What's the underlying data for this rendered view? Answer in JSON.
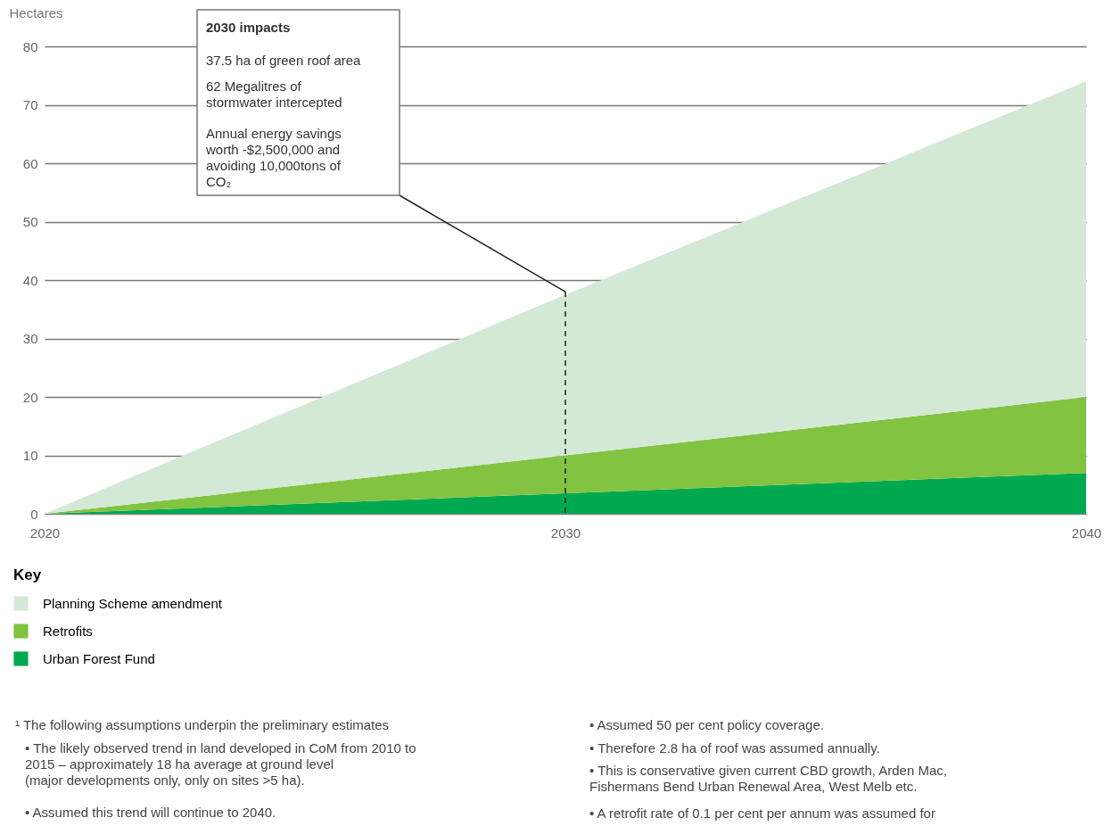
{
  "chart_data": {
    "type": "area",
    "stacked": true,
    "ylabel": "Hectares",
    "legend_title": "Key",
    "legend": "bottom left",
    "x": [
      2020,
      2030,
      2040
    ],
    "xlim": [
      2020,
      2040
    ],
    "xticks": [
      2020,
      2030,
      2040
    ],
    "ref_lines": [
      {
        "axis": "x",
        "value": 2030,
        "color": "#222222",
        "line_style": "dashed"
      }
    ],
    "ylim": [
      0,
      80
    ],
    "yticks": [
      0,
      10,
      20,
      30,
      40,
      50,
      60,
      70,
      80
    ],
    "grid": "y",
    "series": [
      {
        "name": "Urban Forest Fund",
        "color": "#00a94f",
        "values": [
          0,
          3.5,
          7
        ]
      },
      {
        "name": "Retrofits",
        "color": "#82c341",
        "values": [
          0,
          6.5,
          13
        ]
      },
      {
        "name": "Planning Scheme amendment",
        "color": "#d3e9d5",
        "values": [
          0,
          27.5,
          54
        ]
      }
    ],
    "annotations": [
      "2030 impacts",
      "37.5 ha of green roof area",
      "62 Megalitres of\nstormwater intercepted",
      "Annual energy savings\nworth -$2,500,000 and\navoiding 10,000tons of\nCO₂",
      "¹ The following assumptions underpin the preliminary estimates",
      "• The likely observed trend in land developed in CoM from 2010 to\n2015 – approximately 18 ha average at ground level\n(major developments only, only on sites >5 ha).",
      "• Assumed this trend will continue to 2040.",
      "• Assumed 50 per cent policy coverage.",
      "• Therefore 2.8 ha of roof was assumed annually.",
      "• This is conservative given current CBD growth, Arden Mac,\nFishermans Bend Urban Renewal Area, West Melb etc.",
      "• A retrofit rate of 0.1 per cent per annum was assumed for"
    ]
  }
}
